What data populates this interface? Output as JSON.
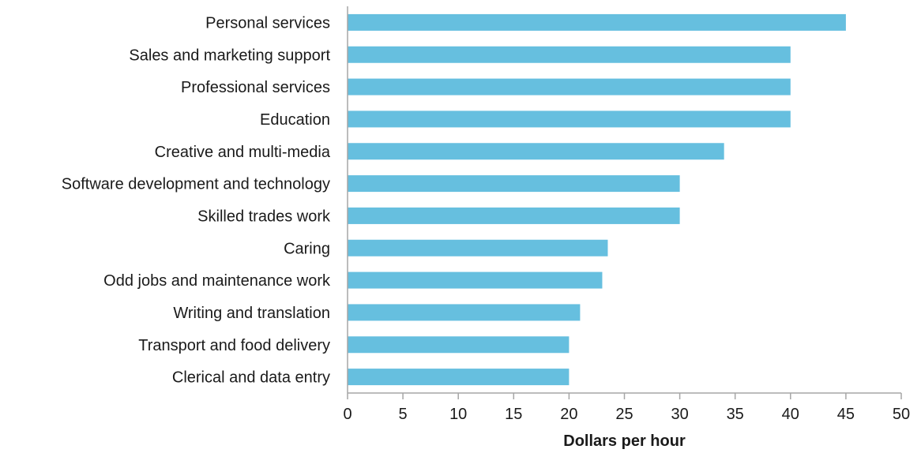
{
  "chart_data": {
    "type": "bar",
    "orientation": "horizontal",
    "categories": [
      "Personal services",
      "Sales and marketing support",
      "Professional services",
      "Education",
      "Creative and multi-media",
      "Software development and technology",
      "Skilled trades work",
      "Caring",
      "Odd jobs and maintenance work",
      "Writing and translation",
      "Transport and food delivery",
      "Clerical and data entry"
    ],
    "values": [
      45,
      40,
      40,
      40,
      34,
      30,
      30,
      23.5,
      23,
      21,
      20,
      20
    ],
    "xlabel": "Dollars per hour",
    "xlim": [
      0,
      50
    ],
    "x_ticks": [
      0,
      5,
      10,
      15,
      20,
      25,
      30,
      35,
      40,
      45,
      50
    ],
    "grid": false,
    "legend": "none",
    "bar_color": "#66bfdf",
    "axis_color": "#a6a6a6"
  }
}
